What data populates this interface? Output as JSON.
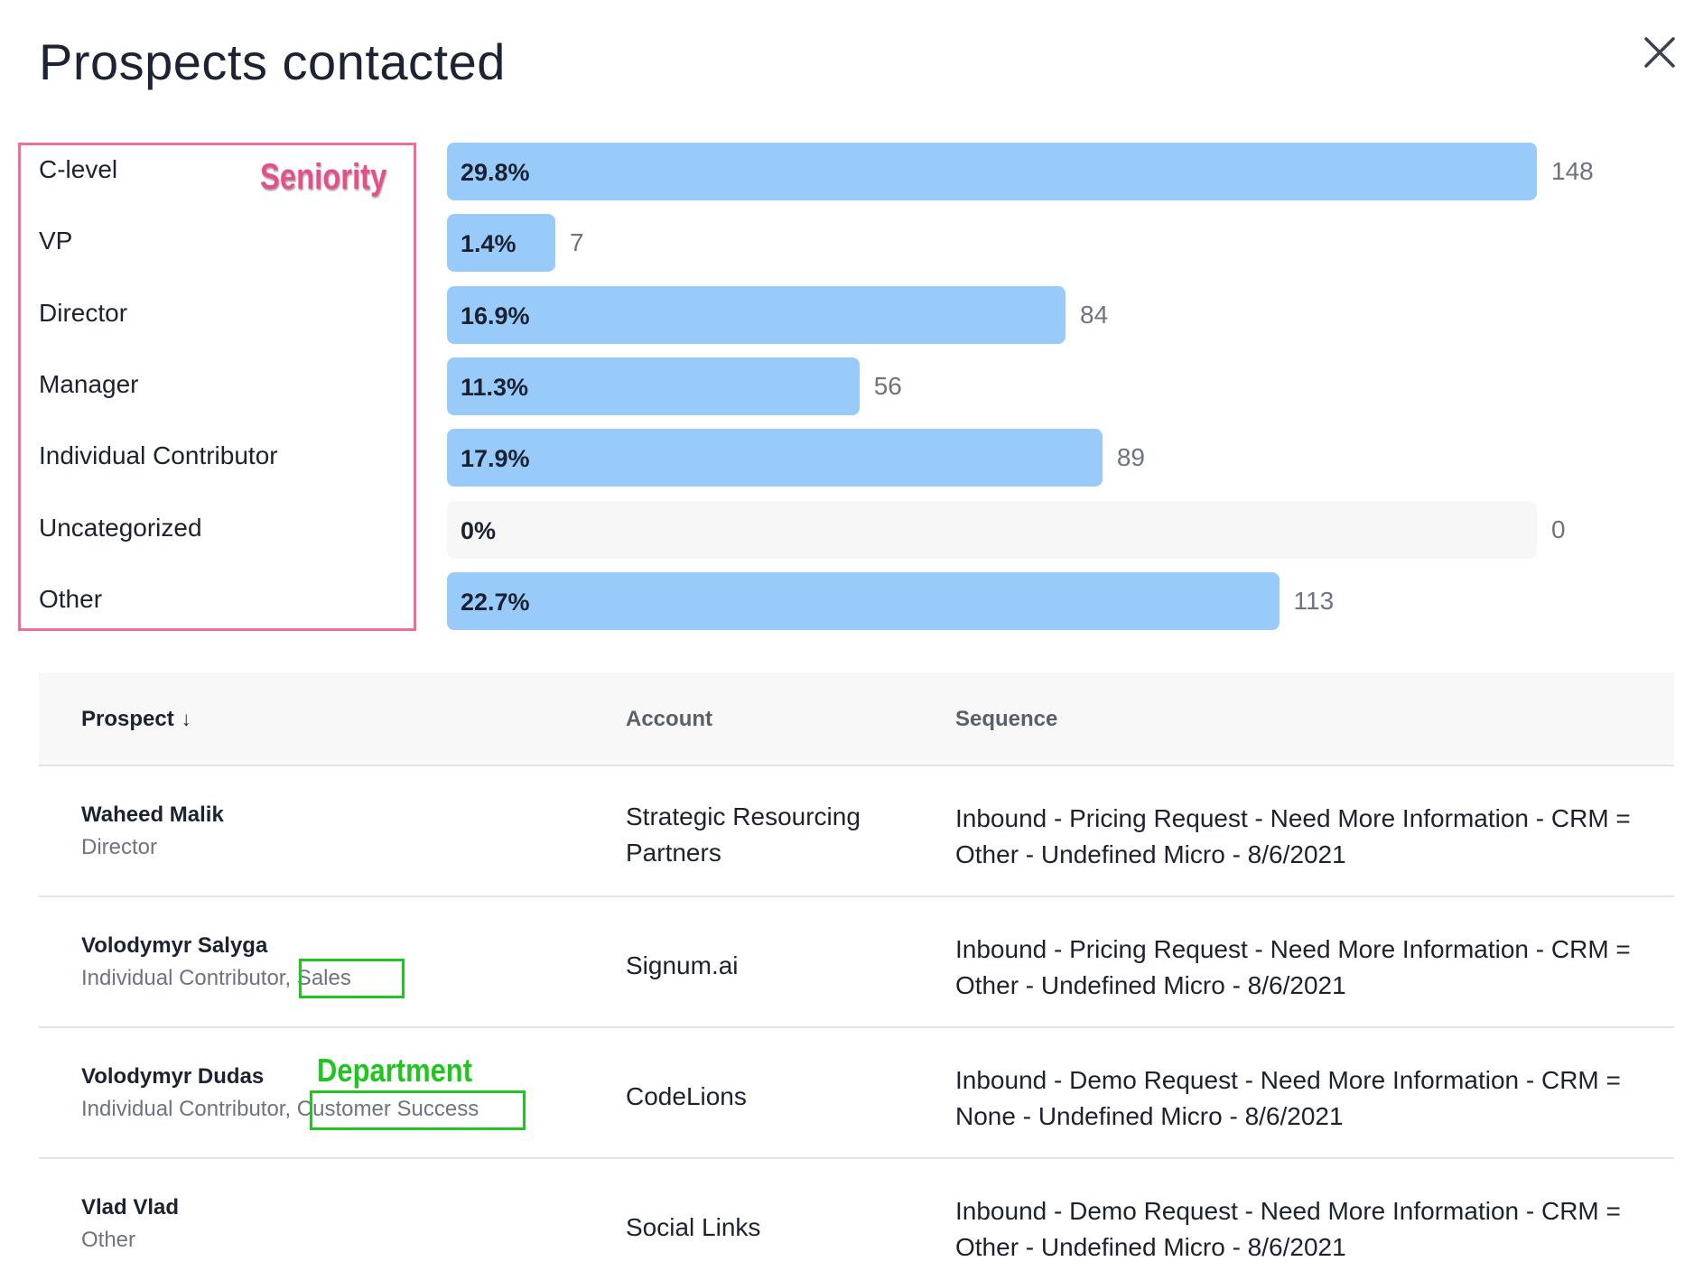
{
  "page": {
    "title": "Prospects contacted"
  },
  "seniority_annotation": "Seniority",
  "department_annotation": "Department",
  "chart_data": {
    "type": "bar",
    "orientation": "horizontal",
    "categories": [
      "C-level",
      "VP",
      "Director",
      "Manager",
      "Individual Contributor",
      "Uncategorized",
      "Other"
    ],
    "values": [
      148,
      7,
      84,
      56,
      89,
      0,
      113
    ],
    "percent_labels": [
      "29.8%",
      "1.4%",
      "16.9%",
      "11.3%",
      "17.9%",
      "0%",
      "22.7%"
    ],
    "count_labels": [
      "148",
      "7",
      "84",
      "56",
      "89",
      "0",
      "113"
    ],
    "xlim": [
      0,
      148
    ],
    "colors": {
      "bar": "#99cbfa",
      "track": "#f7f7f8"
    }
  },
  "table": {
    "headers": {
      "prospect": "Prospect",
      "account": "Account",
      "sequence": "Sequence"
    },
    "sort_icon": "arrow-down-icon",
    "rows": [
      {
        "name": "Waheed Malik",
        "sub": "Director",
        "account": "Strategic Resourcing Partners",
        "sequence": "Inbound - Pricing Request - Need More Information - CRM = Other - Undefined Micro - 8/6/2021"
      },
      {
        "name": "Volodymyr Salyga",
        "sub": "Individual Contributor, Sales",
        "account": "Signum.ai",
        "sequence": "Inbound - Pricing Request - Need More Information - CRM = Other - Undefined Micro - 8/6/2021"
      },
      {
        "name": "Volodymyr Dudas",
        "sub": "Individual Contributor, Customer Success",
        "account": "CodeLions",
        "sequence": "Inbound - Demo Request - Need More Information - CRM = None - Undefined Micro - 8/6/2021"
      },
      {
        "name": "Vlad Vlad",
        "sub": "Other",
        "account": "Social Links",
        "sequence": "Inbound - Demo Request - Need More Information - CRM = Other - Undefined Micro - 8/6/2021"
      }
    ]
  },
  "colors": {
    "seniority_highlight": "#ef6d9a",
    "department_highlight": "#20c520"
  }
}
